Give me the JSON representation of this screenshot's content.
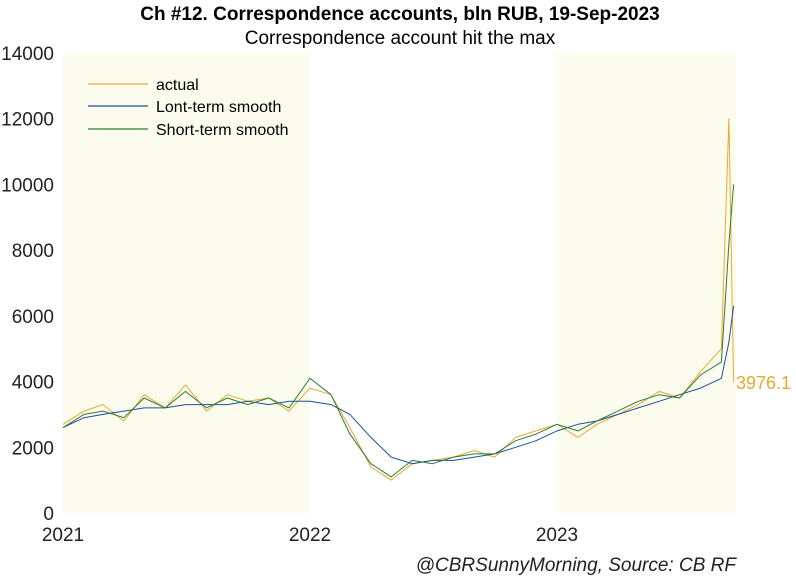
{
  "chart_data": {
    "type": "line",
    "title": "Ch #12. Correspondence accounts, bln RUB, 19-Sep-2023",
    "subtitle": "Correspondence account hit the max",
    "source": "@CBRSunnyMorning, Source: CB RF",
    "ylim": [
      0,
      14000
    ],
    "y_ticks": [
      "0",
      "2000",
      "4000",
      "6000",
      "8000",
      "10000",
      "12000",
      "14000"
    ],
    "x_ticks": [
      "2021",
      "2022",
      "2023"
    ],
    "xlim": [
      "2021-01-01",
      "2023-09-19"
    ],
    "shaded_years": [
      "2021",
      "2023"
    ],
    "grid": false,
    "legend_position": "top-left",
    "last_value_label": "3976.1",
    "colors": {
      "actual": "#e8a832",
      "long": "#1f4e9a",
      "short": "#2e7d32",
      "shade": "#fcfcee"
    },
    "series": [
      {
        "name": "actual",
        "color": "#e8a832",
        "x": [
          "2021-01-01",
          "2021-02-01",
          "2021-03-01",
          "2021-04-01",
          "2021-05-01",
          "2021-06-01",
          "2021-07-01",
          "2021-08-01",
          "2021-09-01",
          "2021-10-01",
          "2021-11-01",
          "2021-12-01",
          "2022-01-01",
          "2022-02-01",
          "2022-03-01",
          "2022-04-01",
          "2022-05-01",
          "2022-06-01",
          "2022-07-01",
          "2022-08-01",
          "2022-09-01",
          "2022-10-01",
          "2022-11-01",
          "2022-12-01",
          "2023-01-01",
          "2023-02-01",
          "2023-03-01",
          "2023-04-01",
          "2023-05-01",
          "2023-06-01",
          "2023-07-01",
          "2023-08-01",
          "2023-09-01",
          "2023-09-12",
          "2023-09-19"
        ],
        "values": [
          2700,
          3100,
          3300,
          2800,
          3600,
          3200,
          3900,
          3100,
          3600,
          3400,
          3500,
          3100,
          3800,
          3600,
          2600,
          1400,
          1000,
          1500,
          1600,
          1700,
          1900,
          1700,
          2300,
          2500,
          2700,
          2300,
          2700,
          3000,
          3300,
          3700,
          3500,
          4300,
          5000,
          12000,
          3976.1
        ]
      },
      {
        "name": "Lont-term smooth",
        "color": "#1f4e9a",
        "x": [
          "2021-01-01",
          "2021-02-01",
          "2021-03-01",
          "2021-04-01",
          "2021-05-01",
          "2021-06-01",
          "2021-07-01",
          "2021-08-01",
          "2021-09-01",
          "2021-10-01",
          "2021-11-01",
          "2021-12-01",
          "2022-01-01",
          "2022-02-01",
          "2022-03-01",
          "2022-04-01",
          "2022-05-01",
          "2022-06-01",
          "2022-07-01",
          "2022-08-01",
          "2022-09-01",
          "2022-10-01",
          "2022-11-01",
          "2022-12-01",
          "2023-01-01",
          "2023-02-01",
          "2023-03-01",
          "2023-04-01",
          "2023-05-01",
          "2023-06-01",
          "2023-07-01",
          "2023-08-01",
          "2023-09-01",
          "2023-09-12",
          "2023-09-19"
        ],
        "values": [
          2600,
          2900,
          3000,
          3100,
          3200,
          3200,
          3300,
          3300,
          3300,
          3400,
          3300,
          3400,
          3400,
          3300,
          3000,
          2300,
          1700,
          1500,
          1600,
          1600,
          1700,
          1800,
          2000,
          2200,
          2500,
          2700,
          2800,
          3000,
          3200,
          3400,
          3600,
          3800,
          4100,
          5200,
          6300
        ]
      },
      {
        "name": "Short-term smooth",
        "color": "#2e7d32",
        "x": [
          "2021-01-01",
          "2021-02-01",
          "2021-03-01",
          "2021-04-01",
          "2021-05-01",
          "2021-06-01",
          "2021-07-01",
          "2021-08-01",
          "2021-09-01",
          "2021-10-01",
          "2021-11-01",
          "2021-12-01",
          "2022-01-01",
          "2022-02-01",
          "2022-03-01",
          "2022-04-01",
          "2022-05-01",
          "2022-06-01",
          "2022-07-01",
          "2022-08-01",
          "2022-09-01",
          "2022-10-01",
          "2022-11-01",
          "2022-12-01",
          "2023-01-01",
          "2023-02-01",
          "2023-03-01",
          "2023-04-01",
          "2023-05-01",
          "2023-06-01",
          "2023-07-01",
          "2023-08-01",
          "2023-09-01",
          "2023-09-12",
          "2023-09-19"
        ],
        "values": [
          2600,
          3000,
          3100,
          2900,
          3500,
          3200,
          3700,
          3200,
          3500,
          3300,
          3500,
          3200,
          4100,
          3600,
          2400,
          1500,
          1100,
          1600,
          1500,
          1700,
          1800,
          1800,
          2200,
          2400,
          2700,
          2500,
          2800,
          3100,
          3400,
          3600,
          3500,
          4200,
          4600,
          8200,
          10000
        ]
      }
    ]
  }
}
